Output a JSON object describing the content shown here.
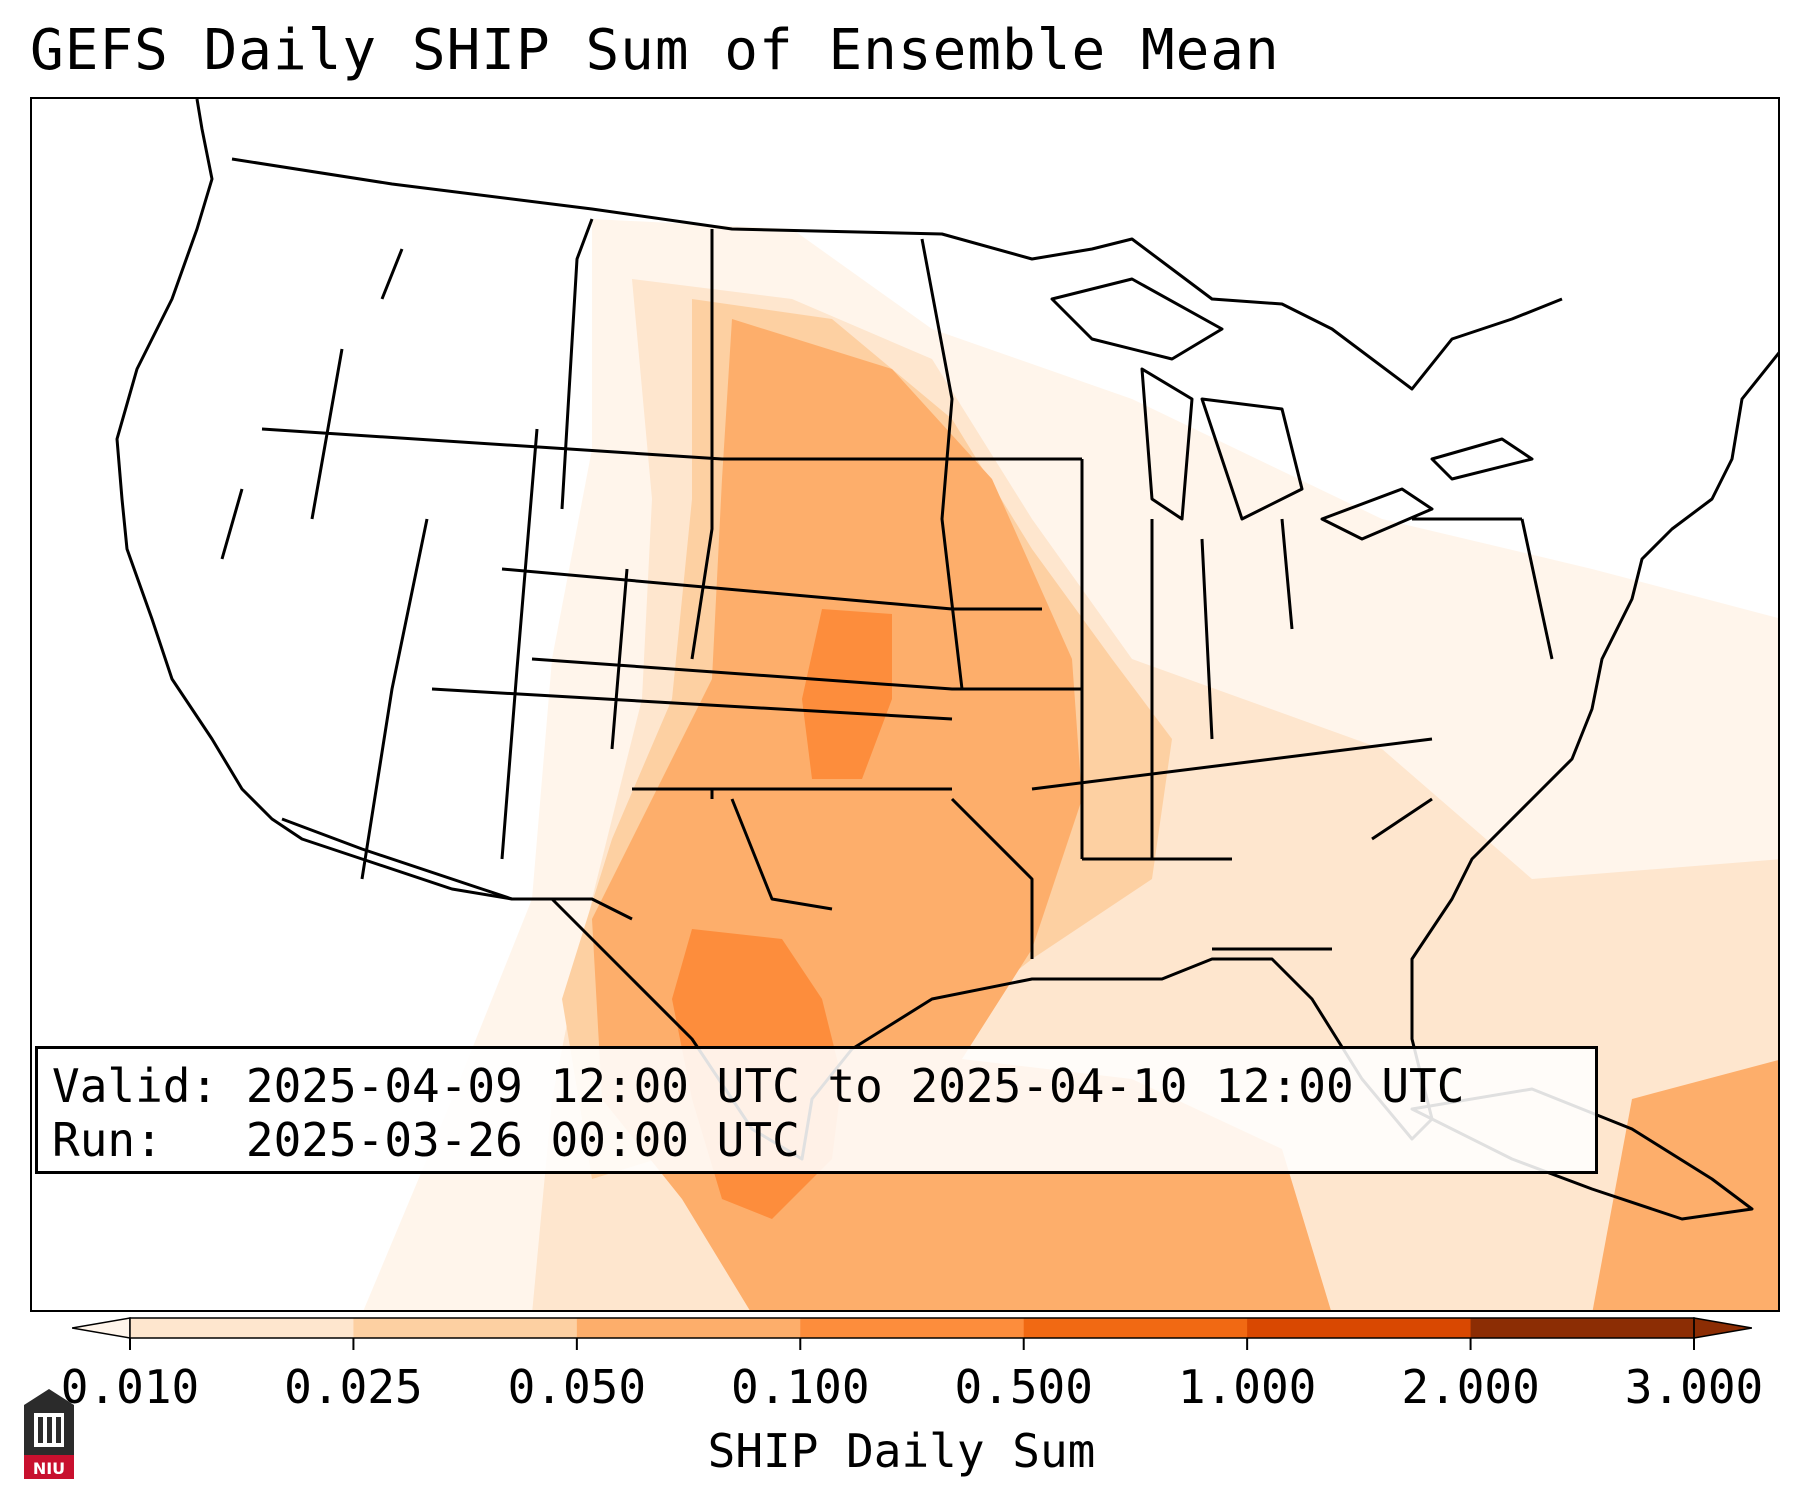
{
  "title": "GEFS Daily SHIP Sum of Ensemble Mean",
  "info": {
    "valid_label": "Valid:",
    "valid_value": "2025-04-09 12:00 UTC to 2025-04-10 12:00 UTC",
    "run_label": "Run:",
    "run_value": "2025-03-26 00:00 UTC"
  },
  "colorbar": {
    "label": "SHIP Daily Sum",
    "ticks": [
      "0.010",
      "0.025",
      "0.050",
      "0.100",
      "0.500",
      "1.000",
      "2.000",
      "3.000"
    ],
    "colors": [
      "#fff5eb",
      "#fee6ce",
      "#fdd0a2",
      "#fdae6b",
      "#fd8d3c",
      "#f16913",
      "#d94801",
      "#8c2d04"
    ],
    "extend": "both"
  },
  "logo": {
    "text": "NIU"
  }
}
